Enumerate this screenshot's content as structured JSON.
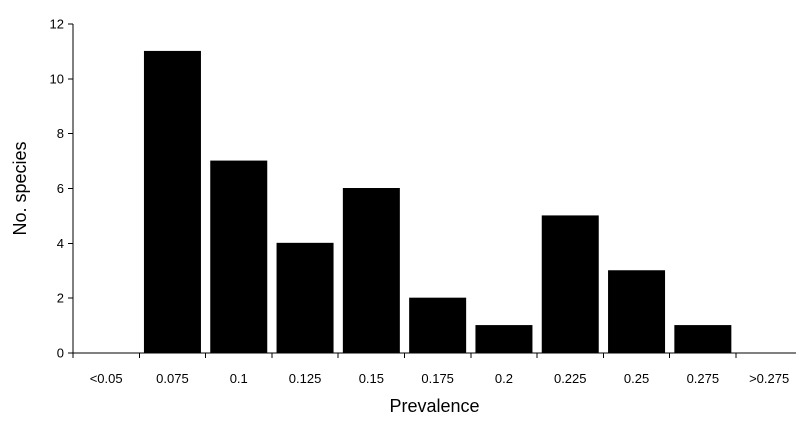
{
  "chart_data": {
    "type": "bar",
    "title": "",
    "xlabel": "Prevalence",
    "ylabel": "No. species",
    "categories": [
      "<0.05",
      "0.075",
      "0.1",
      "0.125",
      "0.15",
      "0.175",
      "0.2",
      "0.225",
      "0.25",
      "0.275",
      ">0.275"
    ],
    "values": [
      0,
      11,
      7,
      4,
      6,
      2,
      1,
      5,
      3,
      1,
      0
    ],
    "ylim": [
      0,
      12
    ],
    "yticks": [
      0,
      2,
      4,
      6,
      8,
      10,
      12
    ],
    "grid": false,
    "legend": "none",
    "bar_color": "#000000"
  }
}
